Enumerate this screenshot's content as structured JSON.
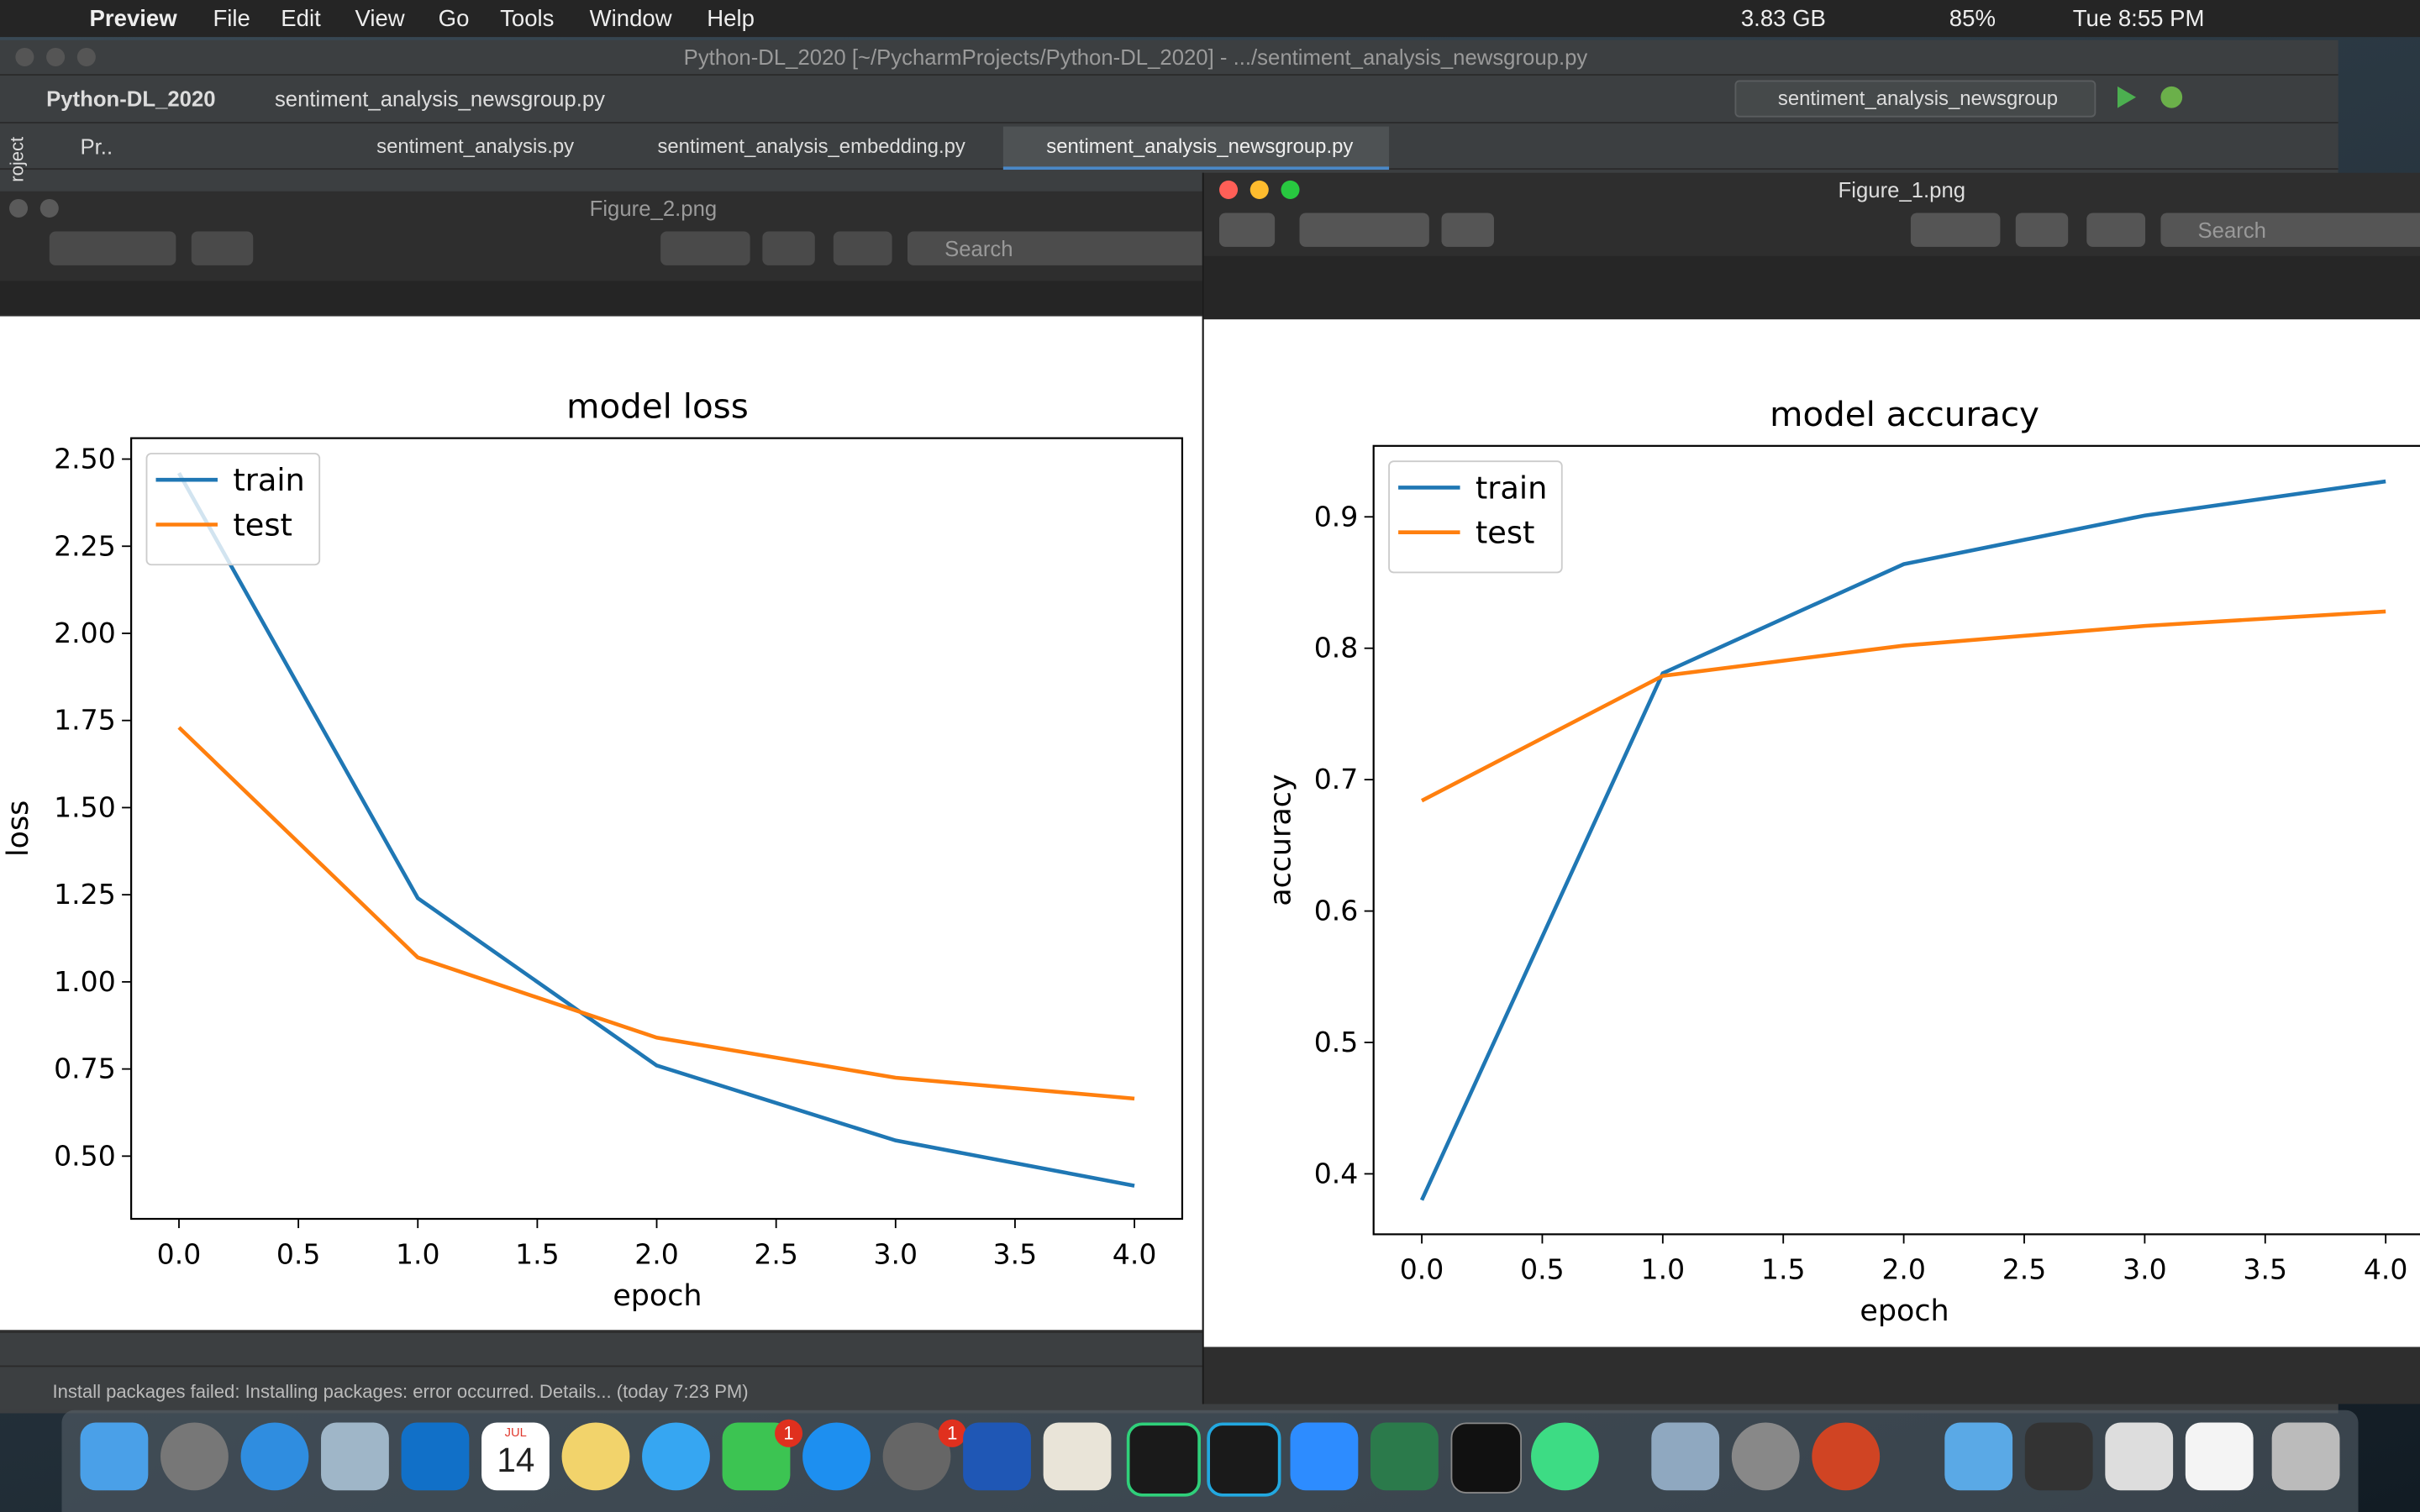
{
  "menu_bar": {
    "app": "Preview",
    "items": [
      "File",
      "Edit",
      "View",
      "Go",
      "Tools",
      "Window",
      "Help"
    ],
    "memory": "3.83 GB",
    "battery": "85%",
    "clock": "Tue 8:55 PM"
  },
  "ide": {
    "title": "Python-DL_2020 [~/PycharmProjects/Python-DL_2020] - .../sentiment_analysis_newsgroup.py",
    "breadcrumbs": [
      "Python-DL_2020",
      "sentiment_analysis_newsgroup.py"
    ],
    "run_config": "sentiment_analysis_newsgroup",
    "project_tab": "Pr..",
    "project_label": "roject",
    "tabs": [
      "sentiment_analysis.py",
      "sentiment_analysis_embedding.py",
      "sentiment_analysis_newsgroup.py"
    ],
    "status": "Install packages failed: Installing packages: error occurred. Details... (today 7:23 PM)"
  },
  "windows": [
    {
      "title": "Figure_2.png",
      "search": "Search"
    },
    {
      "title": "Figure_1.png",
      "search": "Search"
    }
  ],
  "dock": {
    "calendar_month": "JUL",
    "calendar_day": "14",
    "badges": [
      "1",
      "1"
    ]
  },
  "chart_data": [
    {
      "type": "line",
      "title": "model loss",
      "x_label": "epoch",
      "y_label": "loss",
      "x": [
        0,
        1,
        2,
        3,
        4
      ],
      "xlim": [
        -0.2,
        4.2
      ],
      "xticks": [
        {
          "value": 0,
          "label": "0.0"
        },
        0.5,
        {
          "value": 1,
          "label": "1.0"
        },
        1.5,
        {
          "value": 2,
          "label": "2.0"
        },
        2.5,
        {
          "value": 3,
          "label": "3.0"
        },
        3.5,
        {
          "value": 4,
          "label": "4.0"
        }
      ],
      "ylim": [
        0.32,
        2.56
      ],
      "yticks": [
        {
          "value": 0.5,
          "label": "0.50"
        },
        0.75,
        {
          "value": 1,
          "label": "1.00"
        },
        1.25,
        {
          "value": 1.5,
          "label": "1.50"
        },
        1.75,
        {
          "value": 2,
          "label": "2.00"
        },
        2.25,
        {
          "value": 2.5,
          "label": "2.50"
        }
      ],
      "legend": "upper left",
      "series": [
        {
          "name": "train",
          "color": "#1f77b4",
          "values": [
            2.46,
            1.24,
            0.76,
            0.545,
            0.415
          ]
        },
        {
          "name": "test",
          "color": "#ff7f0e",
          "values": [
            1.73,
            1.07,
            0.84,
            0.725,
            0.665
          ]
        }
      ]
    },
    {
      "type": "line",
      "title": "model accuracy",
      "x_label": "epoch",
      "y_label": "accuracy",
      "x": [
        0,
        1,
        2,
        3,
        4
      ],
      "xlim": [
        -0.2,
        4.2
      ],
      "xticks": [
        {
          "value": 0,
          "label": "0.0"
        },
        0.5,
        {
          "value": 1,
          "label": "1.0"
        },
        1.5,
        {
          "value": 2,
          "label": "2.0"
        },
        2.5,
        {
          "value": 3,
          "label": "3.0"
        },
        3.5,
        {
          "value": 4,
          "label": "4.0"
        }
      ],
      "ylim": [
        0.354,
        0.954
      ],
      "yticks": [
        0.4,
        0.5,
        0.6,
        0.7,
        0.8,
        0.9
      ],
      "legend": "upper left",
      "series": [
        {
          "name": "train",
          "color": "#1f77b4",
          "values": [
            0.38,
            0.781,
            0.864,
            0.901,
            0.927
          ]
        },
        {
          "name": "test",
          "color": "#ff7f0e",
          "values": [
            0.684,
            0.779,
            0.802,
            0.817,
            0.828
          ]
        }
      ]
    }
  ]
}
